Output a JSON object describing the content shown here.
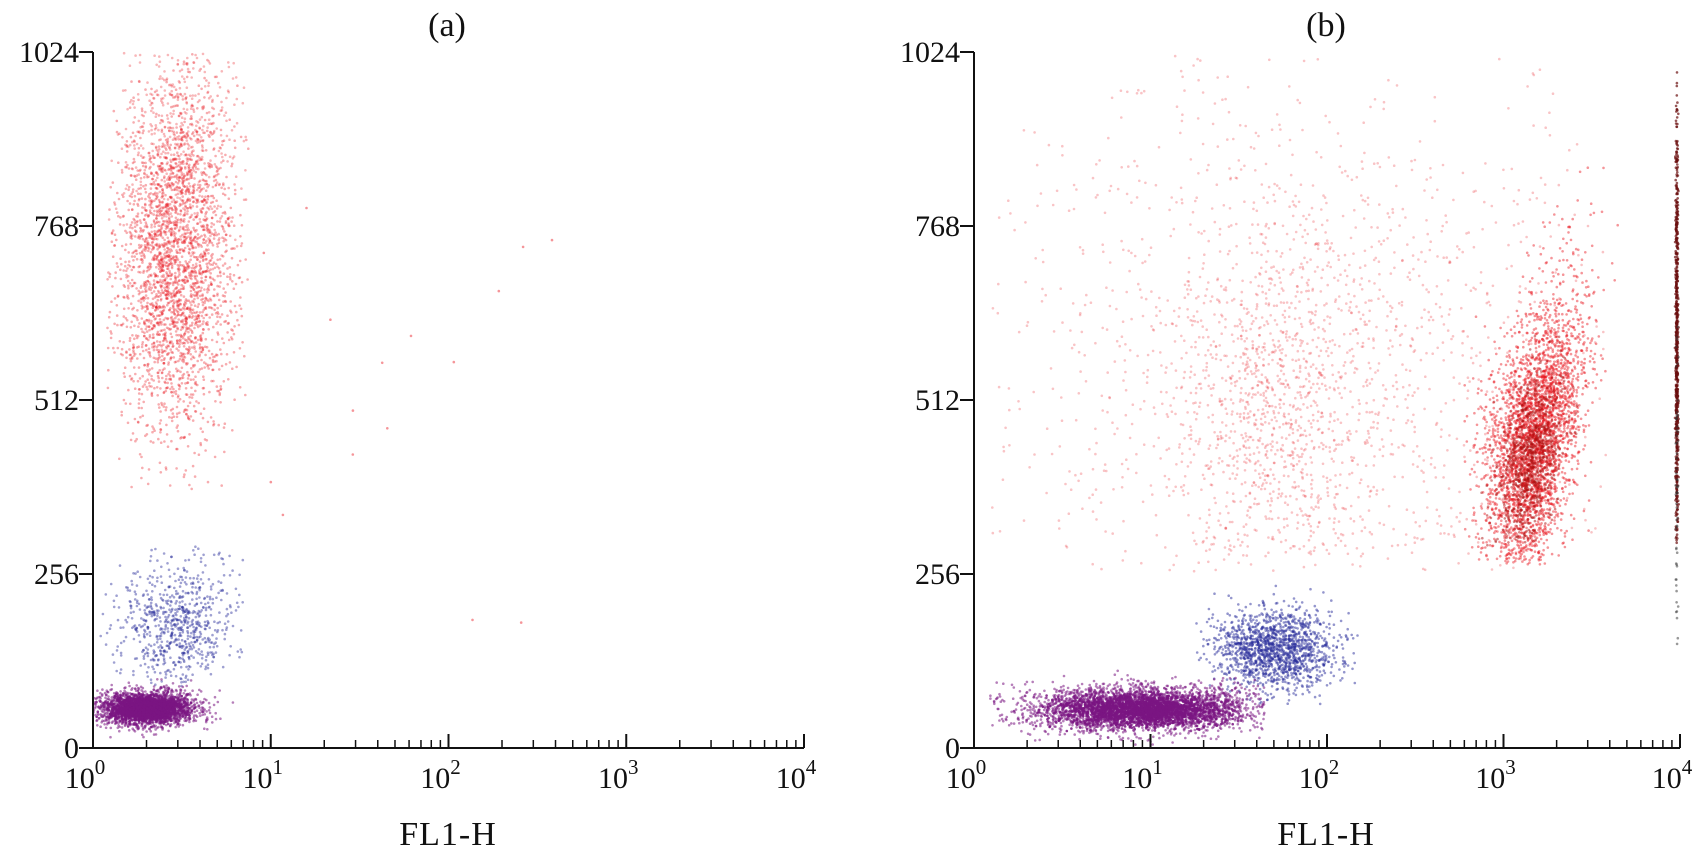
{
  "chart_data": [
    {
      "type": "scatter",
      "panel_label": "(a)",
      "xlabel": "FL1-H",
      "ylabel": "",
      "x_scale": "log",
      "xlim": [
        1,
        10000
      ],
      "ylim": [
        0,
        1024
      ],
      "x_ticks": [
        {
          "base": "10",
          "exp": "0"
        },
        {
          "base": "10",
          "exp": "1"
        },
        {
          "base": "10",
          "exp": "2"
        },
        {
          "base": "10",
          "exp": "3"
        },
        {
          "base": "10",
          "exp": "4"
        }
      ],
      "y_ticks": [
        "0",
        "256",
        "512",
        "768",
        "1024"
      ],
      "grid": false,
      "series": [
        {
          "color": "#e8141c",
          "center": [
            2.9,
            700
          ],
          "spread": [
            0.17,
            120
          ],
          "xmin": 1.2,
          "xmax": 7.5,
          "ymin": 380,
          "ymax": 1024,
          "count": 2600,
          "opacity": 0.35
        },
        {
          "color": "#e8141c",
          "center": [
            3.1,
            880
          ],
          "spread": [
            0.16,
            90
          ],
          "xmin": 1.2,
          "xmax": 7.5,
          "ymin": 600,
          "ymax": 1024,
          "count": 700,
          "opacity": 0.3
        },
        {
          "color": "#2a2e9c",
          "center": [
            3.0,
            180
          ],
          "spread": [
            0.17,
            45
          ],
          "xmin": 1.1,
          "xmax": 7.0,
          "ymin": 90,
          "ymax": 300,
          "count": 750,
          "opacity": 0.45
        },
        {
          "color": "#7a1582",
          "center": [
            2.0,
            58
          ],
          "spread": [
            0.14,
            13
          ],
          "xmin": 1.0,
          "xmax": 7.5,
          "ymin": 15,
          "ymax": 115,
          "count": 2200,
          "opacity": 0.55
        },
        {
          "color": "#7a1582",
          "center": [
            2.0,
            58
          ],
          "spread": [
            0.09,
            8
          ],
          "xmin": 1.0,
          "xmax": 6.0,
          "ymin": 30,
          "ymax": 90,
          "count": 1200,
          "opacity": 0.85
        },
        {
          "color": "#e8141c",
          "center": [
            40,
            500
          ],
          "spread": [
            0.9,
            250
          ],
          "xmin": 8,
          "xmax": 400,
          "ymin": 150,
          "ymax": 1024,
          "count": 28,
          "opacity": 0.45
        }
      ]
    },
    {
      "type": "scatter",
      "panel_label": "(b)",
      "xlabel": "FL1-H",
      "ylabel": "",
      "x_scale": "log",
      "xlim": [
        1,
        10000
      ],
      "ylim": [
        0,
        1024
      ],
      "x_ticks": [
        {
          "base": "10",
          "exp": "0"
        },
        {
          "base": "10",
          "exp": "1"
        },
        {
          "base": "10",
          "exp": "2"
        },
        {
          "base": "10",
          "exp": "3"
        },
        {
          "base": "10",
          "exp": "4"
        }
      ],
      "y_ticks": [
        "0",
        "256",
        "512",
        "768",
        "1024"
      ],
      "grid": false,
      "series": [
        {
          "color": "#e8141c",
          "center": [
            1500,
            450
          ],
          "spread": [
            0.14,
            95
          ],
          "xmin": 600,
          "xmax": 4500,
          "ymin": 270,
          "ymax": 900,
          "count": 3200,
          "opacity": 0.45,
          "tilt": 0.0009
        },
        {
          "color": "#b01010",
          "center": [
            1400,
            420
          ],
          "spread": [
            0.09,
            60
          ],
          "xmin": 700,
          "xmax": 3500,
          "ymin": 290,
          "ymax": 700,
          "count": 900,
          "opacity": 0.5,
          "tilt": 0.0009
        },
        {
          "color": "#e8141c",
          "center": [
            80,
            560
          ],
          "spread": [
            0.85,
            230
          ],
          "xmin": 1.2,
          "xmax": 4000,
          "ymin": 260,
          "ymax": 1024,
          "count": 1800,
          "opacity": 0.25
        },
        {
          "color": "#e8141c",
          "center": [
            45,
            480
          ],
          "spread": [
            0.25,
            130
          ],
          "xmin": 15,
          "xmax": 200,
          "ymin": 280,
          "ymax": 1024,
          "count": 700,
          "opacity": 0.25
        },
        {
          "color": "#2a2e9c",
          "center": [
            50,
            145
          ],
          "spread": [
            0.17,
            30
          ],
          "xmin": 18,
          "xmax": 160,
          "ymin": 60,
          "ymax": 240,
          "count": 1500,
          "opacity": 0.5
        },
        {
          "color": "#7a1582",
          "center": [
            9,
            58
          ],
          "spread": [
            0.33,
            17
          ],
          "xmin": 1.2,
          "xmax": 45,
          "ymin": 5,
          "ymax": 140,
          "count": 3200,
          "opacity": 0.55
        },
        {
          "color": "#7a1582",
          "center": [
            9,
            55
          ],
          "spread": [
            0.22,
            11
          ],
          "xmin": 2,
          "xmax": 30,
          "ymin": 20,
          "ymax": 100,
          "count": 1400,
          "opacity": 0.85
        },
        {
          "color": "#6b0f0f",
          "center": [
            9600,
            600
          ],
          "spread": [
            0.004,
            170
          ],
          "xmin": 9300,
          "xmax": 10000,
          "ymin": 300,
          "ymax": 1024,
          "count": 700,
          "opacity": 0.7
        },
        {
          "color": "#333333",
          "center": [
            9600,
            400
          ],
          "spread": [
            0.004,
            150
          ],
          "xmin": 9300,
          "xmax": 10000,
          "ymin": 150,
          "ymax": 1024,
          "count": 60,
          "opacity": 0.5
        }
      ]
    }
  ]
}
